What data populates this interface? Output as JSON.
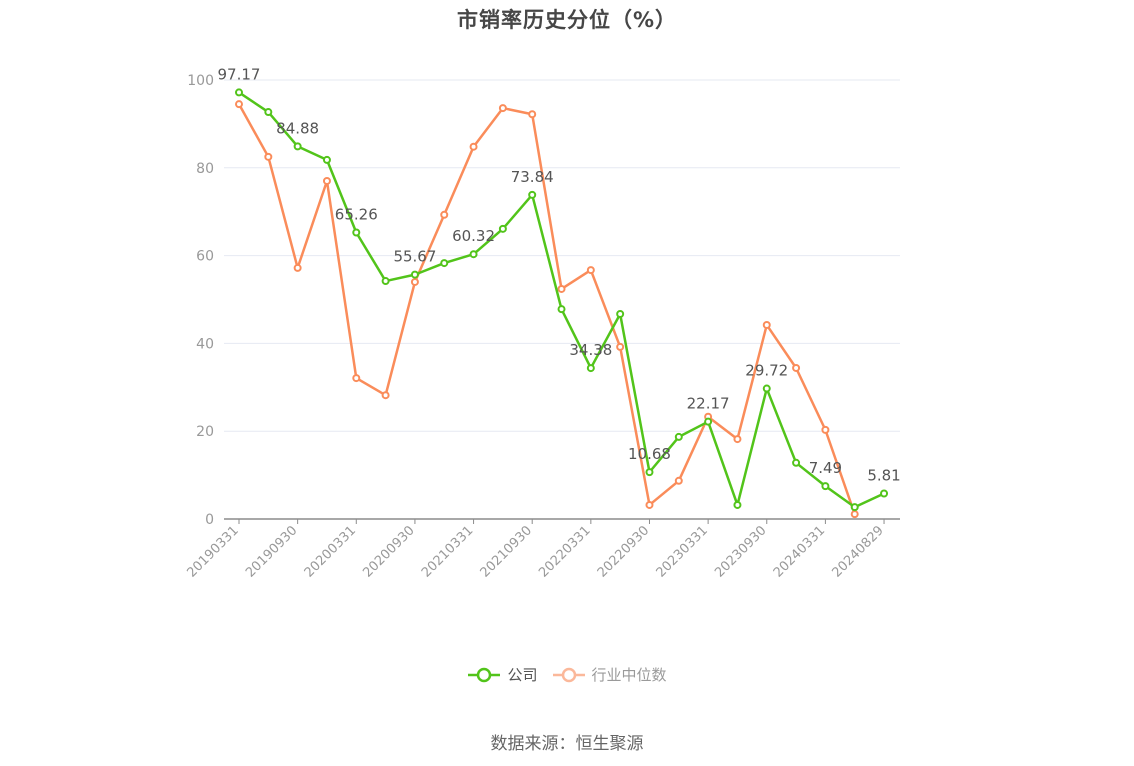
{
  "title": "市销率历史分位（%）",
  "legend": {
    "company": "公司",
    "industry": "行业中位数"
  },
  "source": "数据来源：恒生聚源",
  "colors": {
    "company": "#52c41a",
    "industry": "#fa8c5a",
    "industry_legend_faded": "#fbb89a",
    "grid": "#e6e9f2",
    "axis": "#8c8c8c",
    "tick_label": "#999999",
    "data_label": "#555555"
  },
  "chart_data": {
    "type": "line",
    "title": "市销率历史分位（%）",
    "xlabel": "",
    "ylabel": "",
    "ylim": [
      0,
      100
    ],
    "yticks": [
      0,
      20,
      40,
      60,
      80,
      100
    ],
    "grid": true,
    "legend_position": "bottom",
    "x_tick_labels": [
      "20190331",
      "20190930",
      "20200331",
      "20200930",
      "20210331",
      "20210930",
      "20220331",
      "20220930",
      "20230331",
      "20230930",
      "20240331",
      "20240829"
    ],
    "x": [
      "20190331",
      "",
      "20190930",
      "",
      "20200331",
      "",
      "20200930",
      "",
      "20210331",
      "",
      "20210930",
      "",
      "20220331",
      "",
      "20220930",
      "",
      "20230331",
      "",
      "20230930",
      "",
      "20240331",
      "",
      "20240829"
    ],
    "series": [
      {
        "name": "公司",
        "values": [
          97.17,
          92.7,
          84.88,
          81.8,
          65.26,
          54.2,
          55.67,
          58.3,
          60.32,
          66.1,
          73.84,
          47.8,
          34.38,
          46.7,
          10.68,
          18.7,
          22.17,
          3.2,
          29.72,
          12.8,
          7.49,
          2.7,
          5.81
        ],
        "labeled_indices": [
          0,
          2,
          4,
          6,
          8,
          10,
          12,
          14,
          16,
          18,
          20,
          22
        ]
      },
      {
        "name": "行业中位数",
        "values": [
          94.5,
          82.5,
          57.2,
          77.0,
          32.1,
          28.2,
          54.0,
          69.3,
          84.8,
          93.6,
          92.2,
          52.4,
          56.7,
          39.2,
          3.2,
          8.7,
          23.3,
          18.2,
          44.2,
          34.4,
          20.3,
          1.1,
          null
        ]
      }
    ]
  }
}
